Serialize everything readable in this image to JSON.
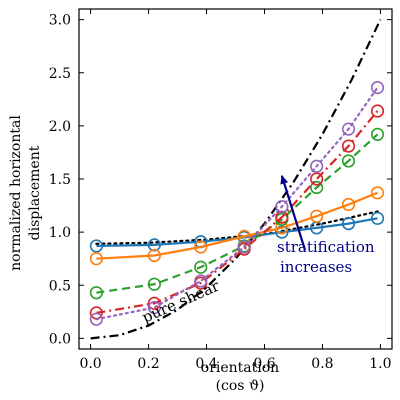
{
  "chart_data": {
    "type": "line",
    "title": "",
    "xlabel": "orientation",
    "xlabel_sub": "(cos ϑ)",
    "ylabel_line1": "normalized horizontal",
    "ylabel_line2": "displacement",
    "xlim": [
      -0.04,
      1.04
    ],
    "ylim": [
      -0.1,
      3.1
    ],
    "x_ticks": [
      0.0,
      0.2,
      0.4,
      0.6,
      0.8,
      1.0
    ],
    "x_tick_labels": [
      "0.0",
      "0.2",
      "0.4",
      "0.6",
      "0.8",
      "1.0"
    ],
    "y_ticks": [
      0.0,
      0.5,
      1.0,
      1.5,
      2.0,
      2.5,
      3.0
    ],
    "y_tick_labels": [
      "0.0",
      "0.5",
      "1.0",
      "1.5",
      "2.0",
      "2.5",
      "3.0"
    ],
    "grid": false,
    "legend": "none",
    "series": [
      {
        "color": "#000000",
        "dash": "dotted",
        "markers": false,
        "x": [
          0.02,
          0.2,
          0.4,
          0.6,
          0.8,
          1.0
        ],
        "y": [
          0.89,
          0.9,
          0.93,
          0.98,
          1.08,
          1.2
        ]
      },
      {
        "color": "#1f77b4",
        "dash": "solid",
        "markers": true,
        "x": [
          0.02,
          0.22,
          0.38,
          0.53,
          0.66,
          0.78,
          0.89,
          0.99
        ],
        "y": [
          0.87,
          0.88,
          0.91,
          0.95,
          1.0,
          1.04,
          1.08,
          1.13
        ]
      },
      {
        "color": "#ff7f0e",
        "dash": "solid",
        "markers": true,
        "x": [
          0.02,
          0.22,
          0.38,
          0.53,
          0.66,
          0.78,
          0.89,
          0.99
        ],
        "y": [
          0.75,
          0.78,
          0.86,
          0.96,
          1.04,
          1.15,
          1.26,
          1.37
        ]
      },
      {
        "color": "#2ca02c",
        "dash": "dashed",
        "markers": true,
        "x": [
          0.02,
          0.22,
          0.38,
          0.53,
          0.66,
          0.78,
          0.89,
          0.99
        ],
        "y": [
          0.43,
          0.51,
          0.67,
          0.87,
          1.12,
          1.42,
          1.67,
          1.92
        ]
      },
      {
        "color": "#d62728",
        "dash": "dashdot",
        "markers": true,
        "x": [
          0.02,
          0.22,
          0.38,
          0.53,
          0.66,
          0.78,
          0.89,
          0.99
        ],
        "y": [
          0.24,
          0.33,
          0.52,
          0.84,
          1.14,
          1.5,
          1.81,
          2.14
        ]
      },
      {
        "color": "#9467bd",
        "dash": "dotted",
        "markers": true,
        "x": [
          0.02,
          0.22,
          0.38,
          0.53,
          0.66,
          0.78,
          0.89,
          0.99
        ],
        "y": [
          0.18,
          0.29,
          0.54,
          0.86,
          1.24,
          1.62,
          1.97,
          2.36
        ]
      }
    ],
    "reference_curve": {
      "label": "pure shear",
      "color": "#000000",
      "dash": "dashdot",
      "x": [
        0.0,
        0.1,
        0.2,
        0.3,
        0.4,
        0.5,
        0.6,
        0.7,
        0.8,
        0.9,
        1.0
      ],
      "y": [
        0.0,
        0.03,
        0.12,
        0.27,
        0.48,
        0.75,
        1.08,
        1.47,
        1.92,
        2.43,
        3.0
      ]
    },
    "annotations": {
      "arrow_color": "#00008b",
      "arrow_from": [
        0.74,
        0.83
      ],
      "arrow_to": [
        0.66,
        1.53
      ],
      "stratification_line1": "stratification",
      "stratification_line2": "increases",
      "pure_shear_text": "pure shear"
    }
  }
}
